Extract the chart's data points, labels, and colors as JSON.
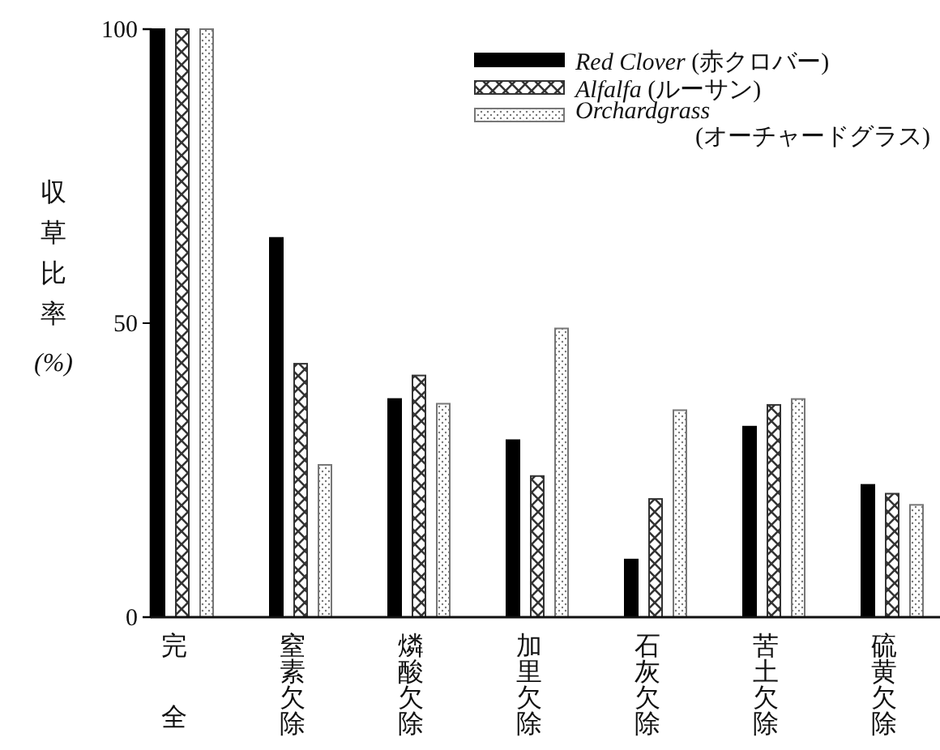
{
  "chart_data": {
    "type": "bar",
    "categories": [
      "完全",
      "窒素欠除",
      "燐酸欠除",
      "加里欠除",
      "石灰欠除",
      "苦土欠除",
      "硫黄欠除"
    ],
    "ylabel": "収草比率 (%)",
    "ylim": [
      0,
      100
    ],
    "yticks": [
      0,
      50,
      100
    ],
    "grid": false,
    "legend": "top right",
    "series": [
      {
        "name": "Red Clover (赤クロバー)",
        "color": "#000000",
        "values": [
          100,
          64.5,
          37.1,
          30.1,
          9.8,
          32.4,
          22.5
        ]
      },
      {
        "name": "Alfalfa (ルーサン)",
        "color": "#333333",
        "values": [
          100,
          43.1,
          41.1,
          24.0,
          20.1,
          36.1,
          21.0
        ]
      },
      {
        "name": "Orchardgrass (オーチャードグラス)",
        "color": "#777777",
        "values": [
          100,
          25.9,
          36.3,
          49.1,
          35.2,
          37.1,
          19.1
        ]
      }
    ]
  }
}
